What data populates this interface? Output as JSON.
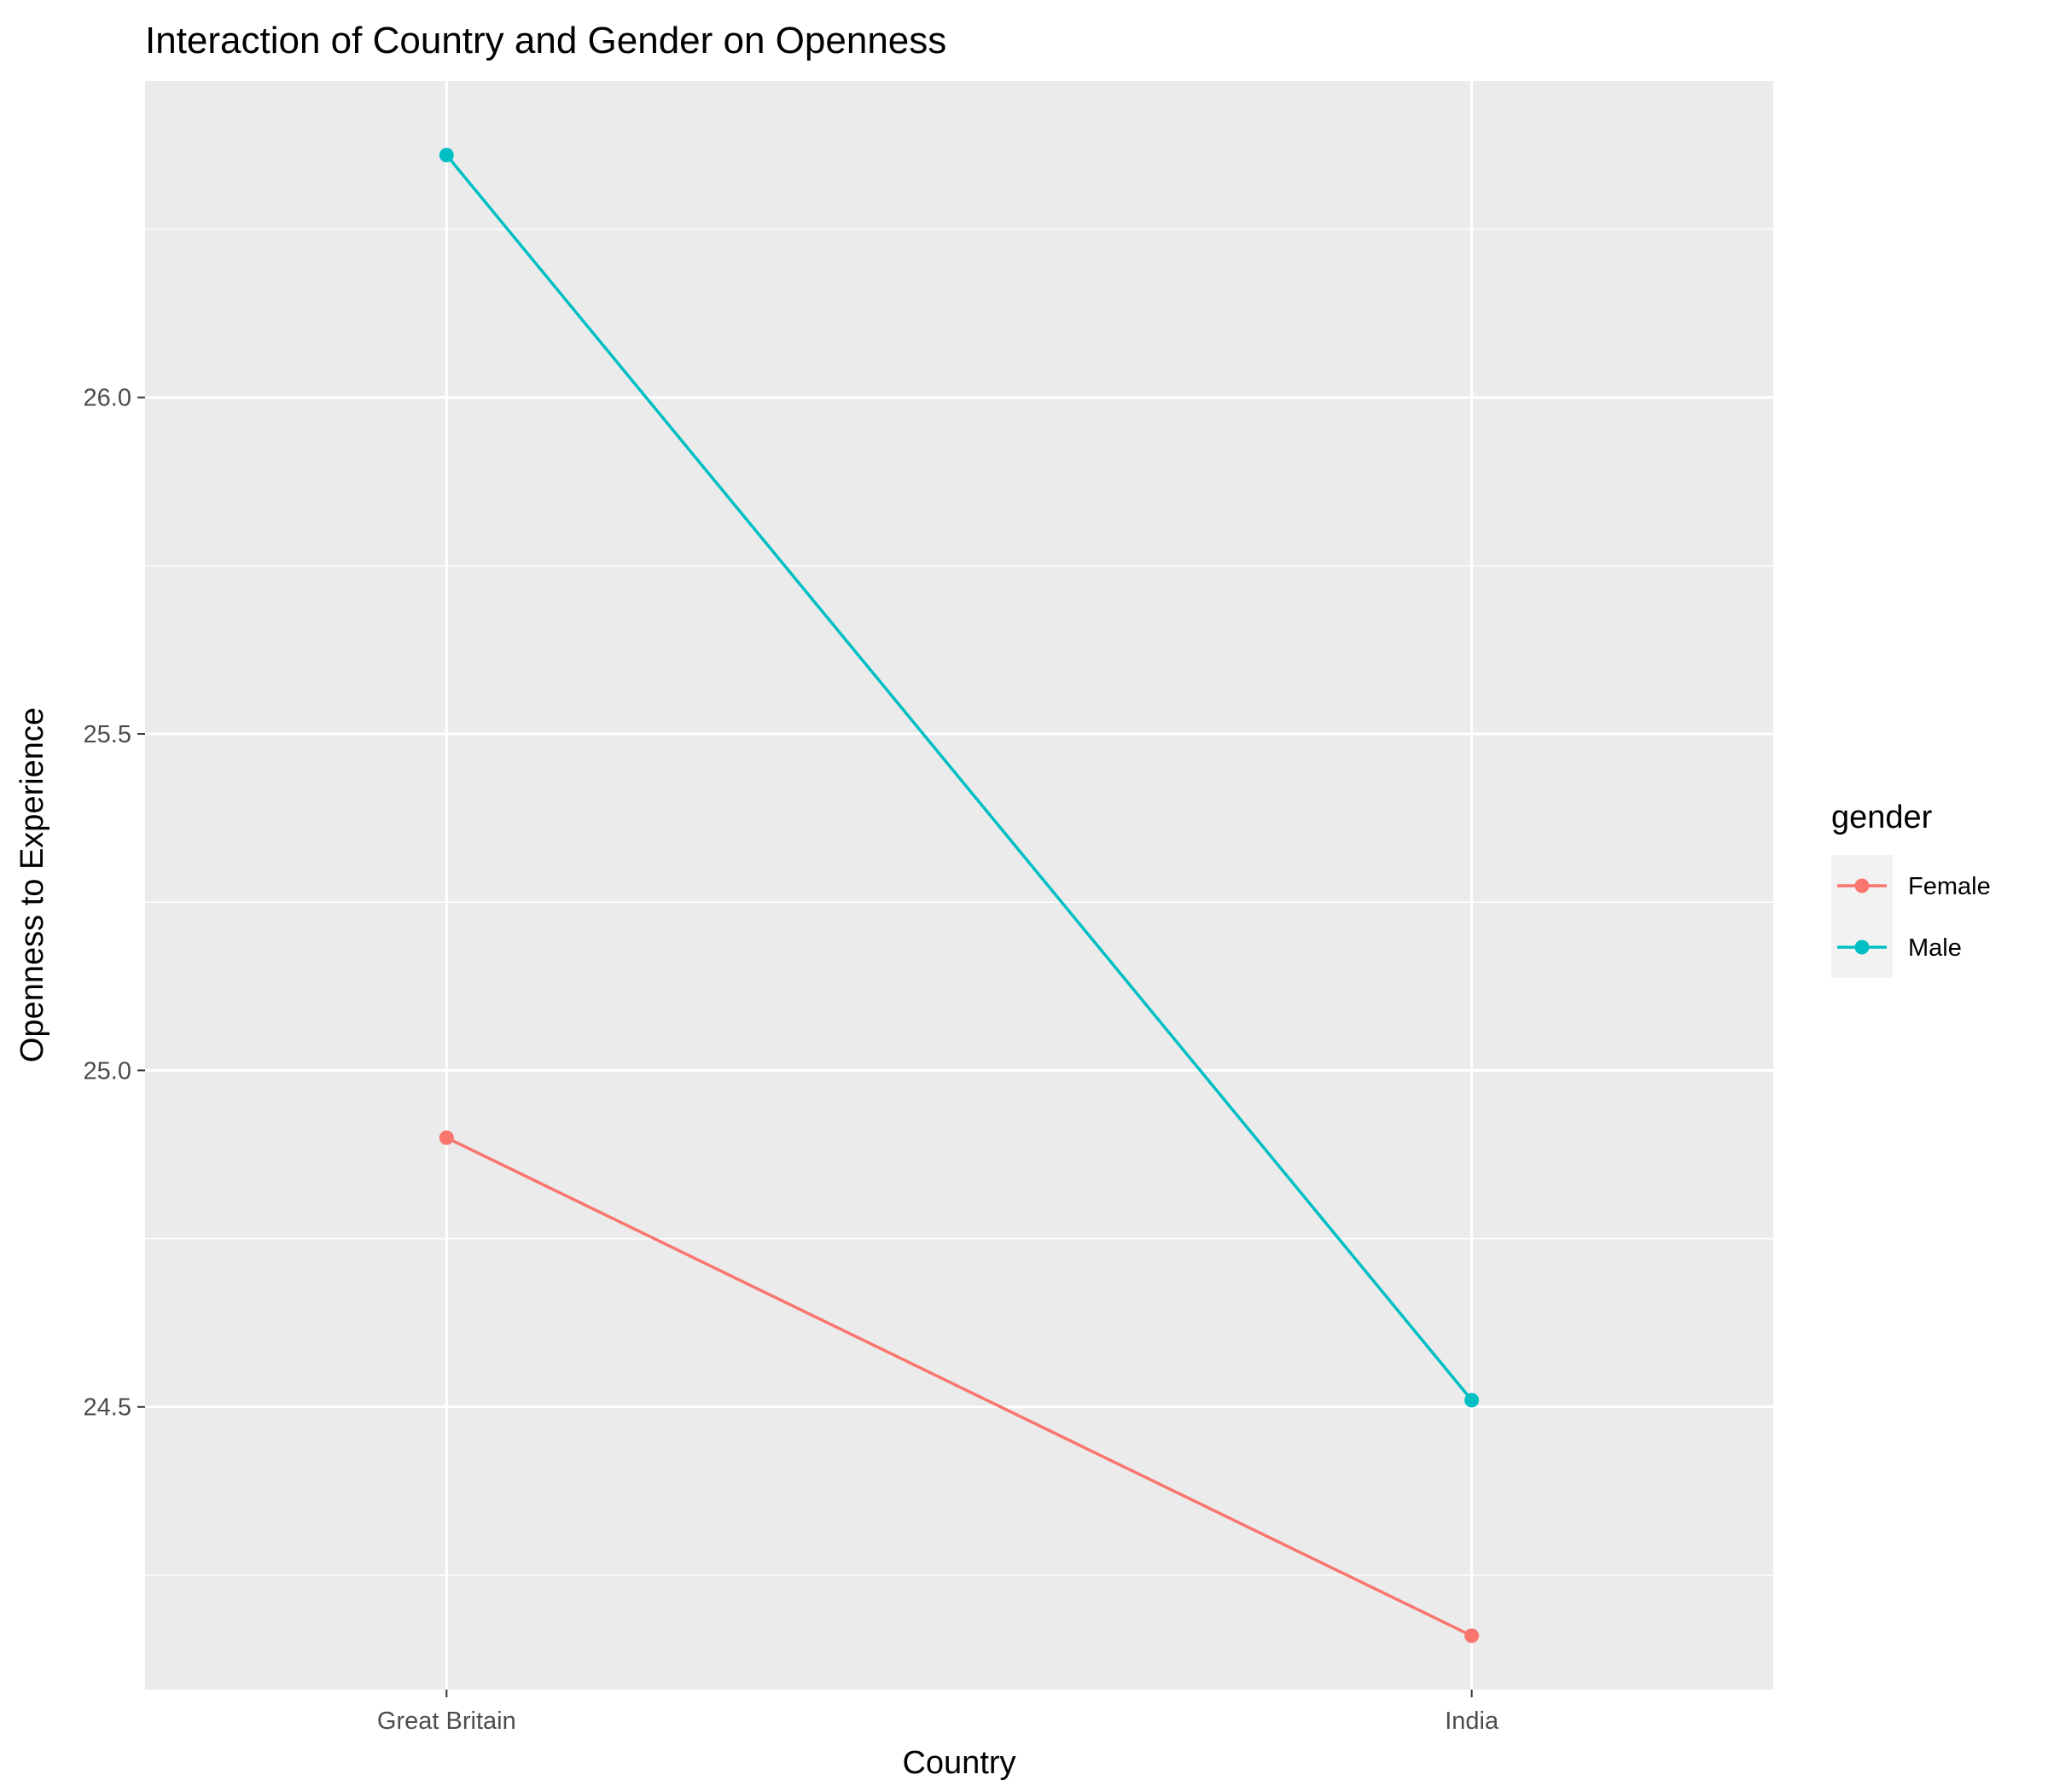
{
  "chart_data": {
    "type": "line",
    "title": "Interaction of Country and Gender on Openness",
    "xlabel": "Country",
    "ylabel": "Openness to Experience",
    "categories": [
      "Great Britain",
      "India"
    ],
    "y_ticks": [
      "24.5",
      "25.0",
      "25.5",
      "26.0"
    ],
    "y_tick_values": [
      24.5,
      25.0,
      25.5,
      26.0
    ],
    "ylim": [
      24.08,
      26.47
    ],
    "grid": true,
    "legend": {
      "title": "gender",
      "position": "right"
    },
    "series": [
      {
        "name": "Female",
        "color": "#F8766D",
        "values": [
          24.9,
          24.16
        ]
      },
      {
        "name": "Male",
        "color": "#00BFC4",
        "values": [
          26.36,
          24.51
        ]
      }
    ]
  }
}
